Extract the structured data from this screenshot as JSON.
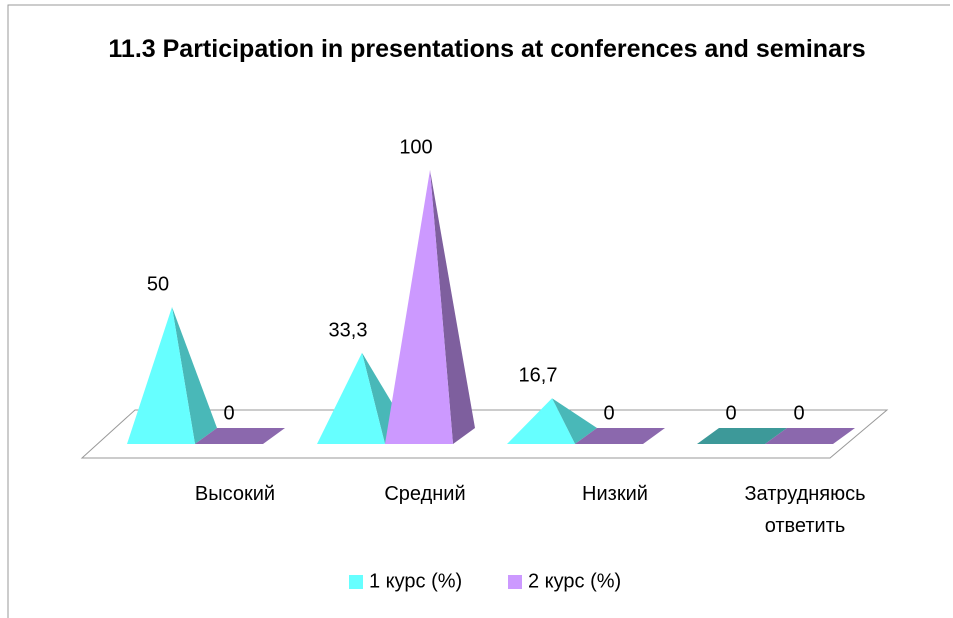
{
  "chart_data": {
    "type": "pyramid3d",
    "title": "11.3 Participation in presentations at conferences and seminars",
    "categories": [
      "Высокий",
      "Средний",
      "Низкий",
      "Затрудняюсь ответить"
    ],
    "series": [
      {
        "name": "1 курс (%)",
        "color": "#66ffff",
        "values": [
          50,
          33.3,
          16.7,
          0
        ],
        "value_labels": [
          "50",
          "33,3",
          "16,7",
          "0"
        ]
      },
      {
        "name": "2 курс (%)",
        "color": "#cc99ff",
        "values": [
          0,
          100,
          0,
          0
        ],
        "value_labels": [
          "0",
          "100",
          "0",
          "0"
        ]
      }
    ],
    "legend": "bottom"
  }
}
